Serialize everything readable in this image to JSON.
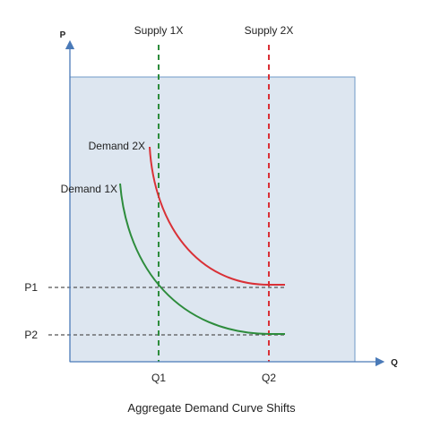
{
  "chart_data": {
    "type": "line",
    "title": "Aggregate Demand Curve Shifts",
    "xlabel": "Q",
    "ylabel": "P",
    "grid": false,
    "colors": {
      "plot_background": "#dde6f0",
      "plot_border": "#6f9ac7",
      "axis": "#4a7ab8",
      "supply_1x": "#2d8c3c",
      "supply_2x": "#d93036",
      "demand_1x": "#2d8c3c",
      "demand_2x": "#d93036",
      "reference_lines": "#555555"
    },
    "series": [
      {
        "name": "Supply 1X",
        "kind": "vertical",
        "at": "Q1",
        "style": "dashed",
        "color": "#2d8c3c"
      },
      {
        "name": "Supply 2X",
        "kind": "vertical",
        "at": "Q2",
        "style": "dashed",
        "color": "#d93036"
      },
      {
        "name": "Demand 1X",
        "kind": "curve",
        "style": "solid",
        "color": "#2d8c3c",
        "passes_through": [
          [
            "Q1",
            "P1"
          ],
          [
            "Q2",
            "P2"
          ]
        ]
      },
      {
        "name": "Demand 2X",
        "kind": "curve",
        "style": "solid",
        "color": "#d93036",
        "passes_through": [
          [
            "Q2",
            "P1"
          ]
        ]
      }
    ],
    "x_ticks": [
      "Q1",
      "Q2"
    ],
    "y_ticks": [
      "P1",
      "P2"
    ],
    "reference_lines": [
      {
        "axis": "y",
        "at": "P1",
        "style": "dashed"
      },
      {
        "axis": "y",
        "at": "P2",
        "style": "dashed"
      }
    ]
  }
}
